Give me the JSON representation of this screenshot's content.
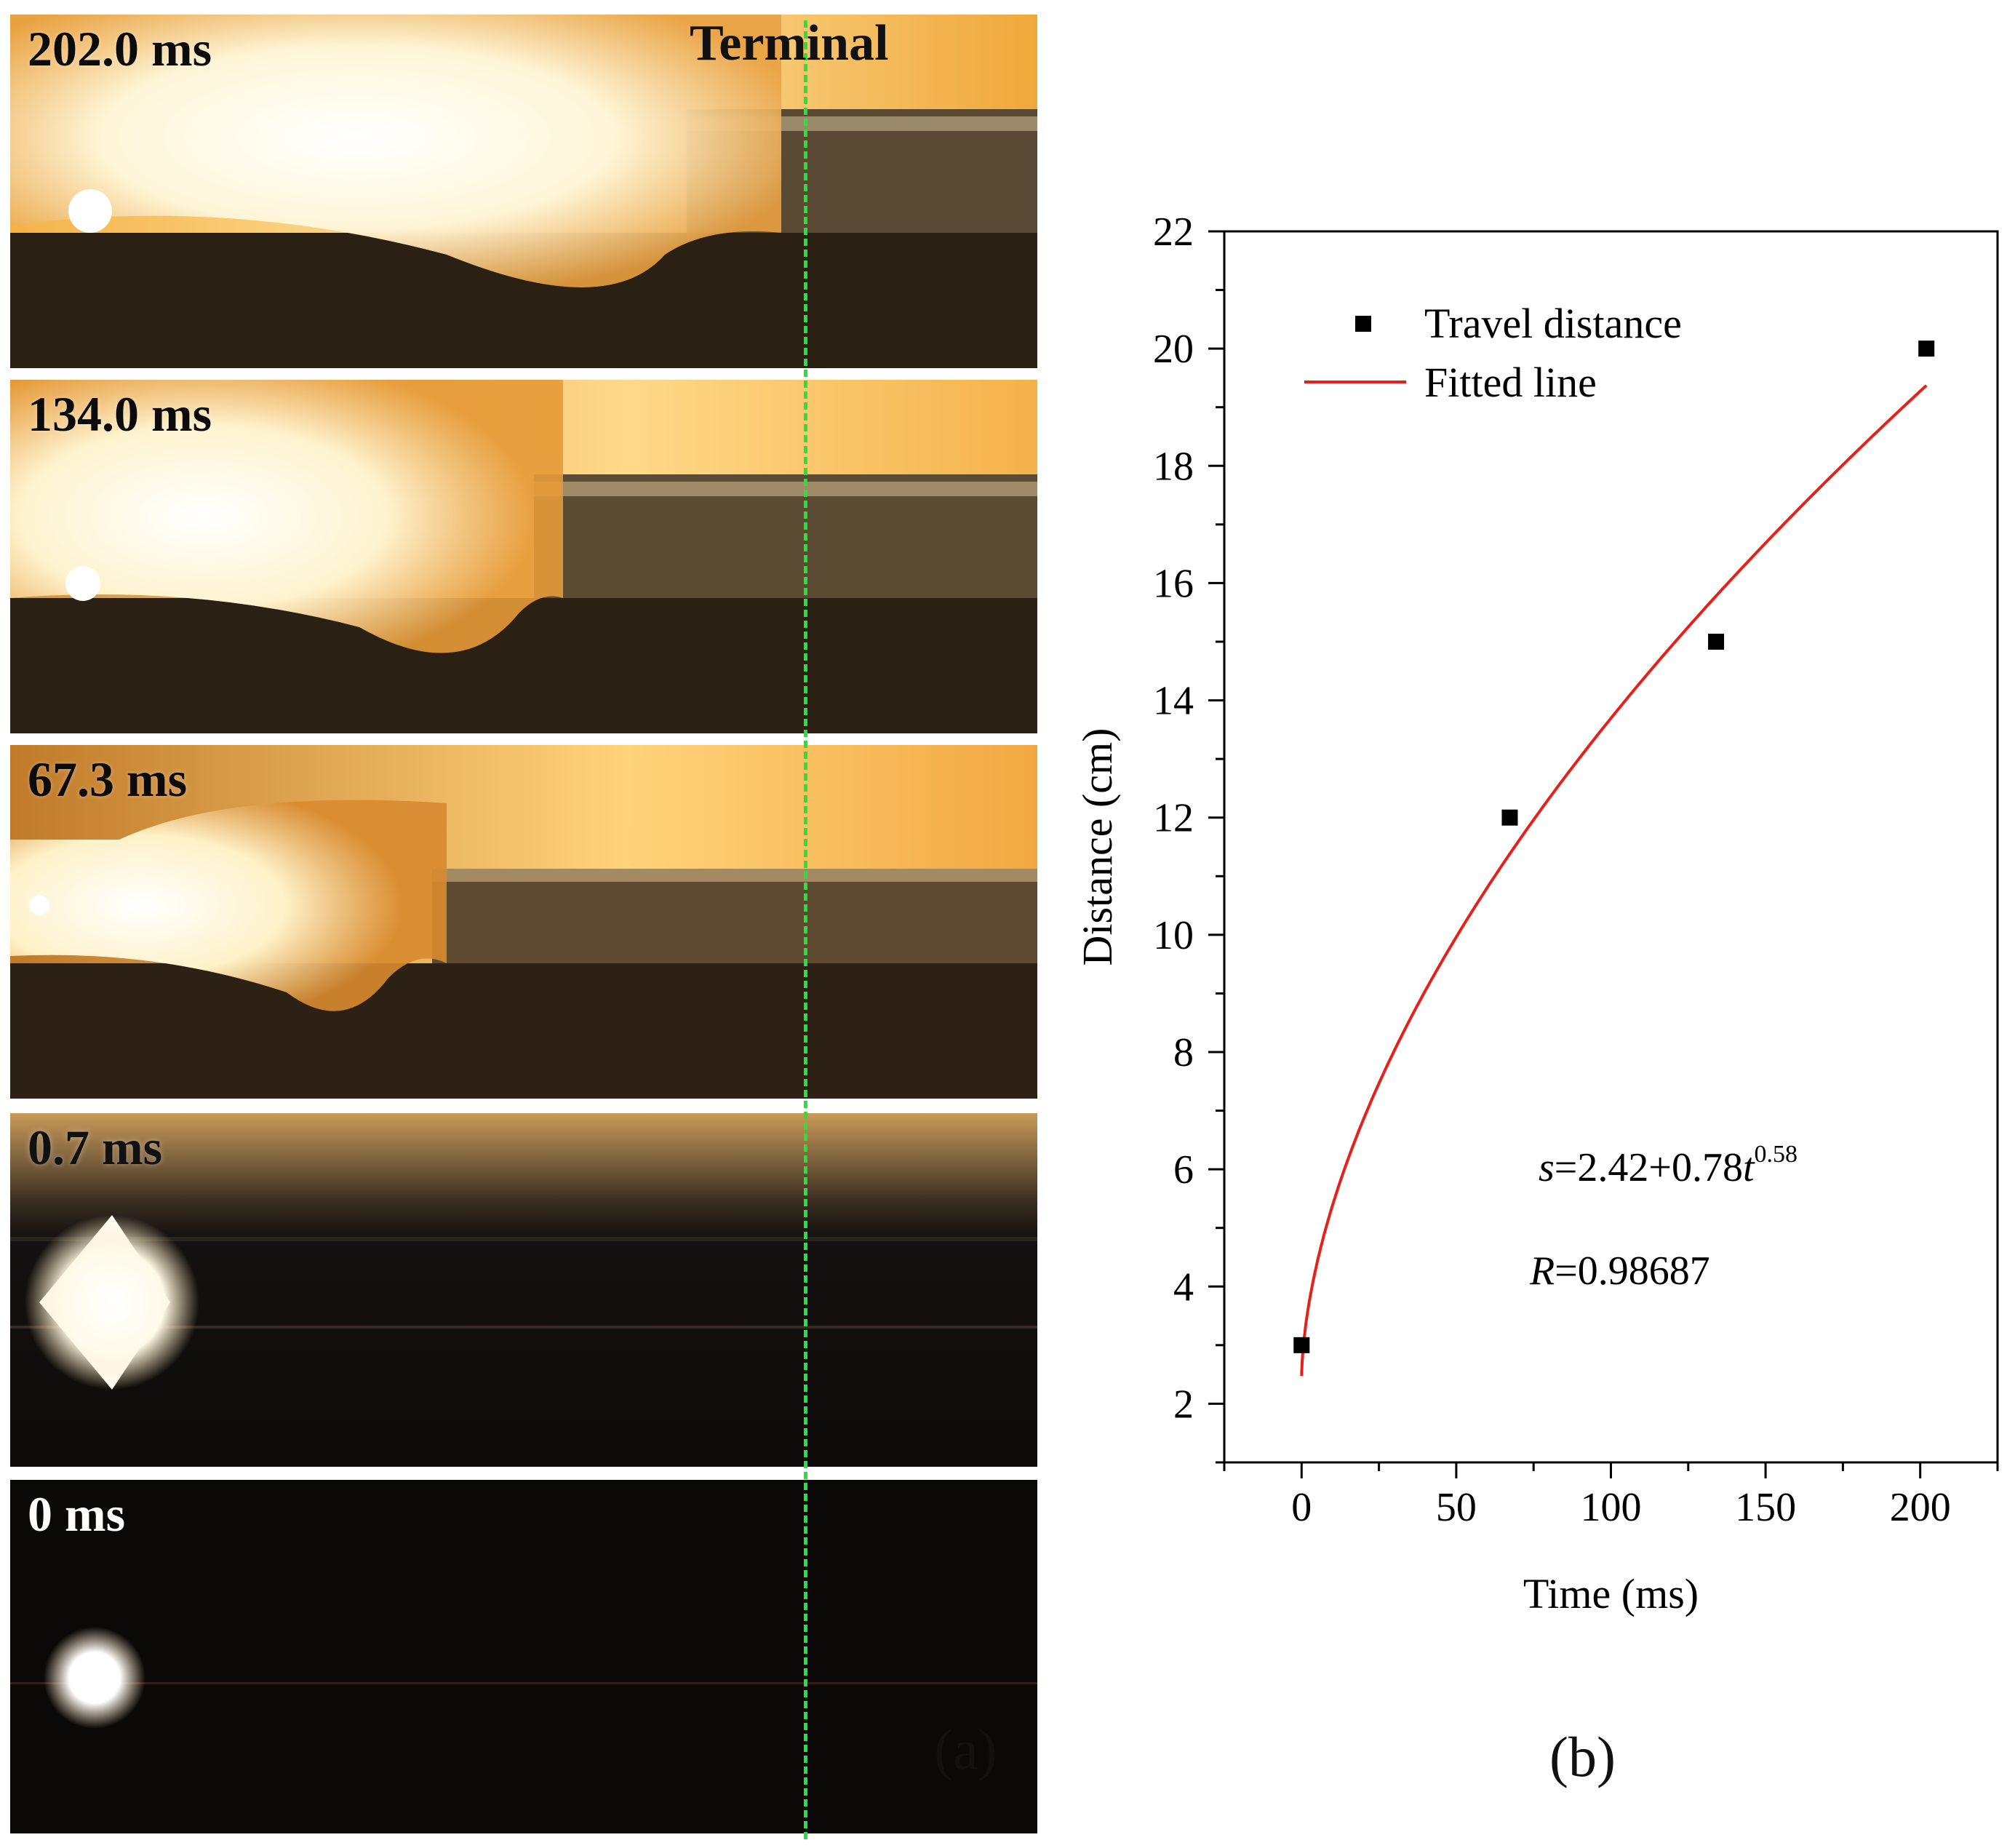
{
  "panel_a": {
    "terminal_label": "Terminal",
    "panel_label": "(a)",
    "frames": [
      {
        "time": "202.0 ms"
      },
      {
        "time": "134.0 ms"
      },
      {
        "time": "67.3 ms"
      },
      {
        "time": "0.7 ms"
      },
      {
        "time": "0 ms"
      }
    ],
    "colors": {
      "terminal_line": "#26e23a",
      "flame": "#ffd27a"
    }
  },
  "panel_b": {
    "panel_label": "(b)"
  },
  "chart_data": {
    "type": "scatter",
    "title": "",
    "xlabel": "Time (ms)",
    "ylabel": "Distance (cm)",
    "xlim": [
      -25,
      225
    ],
    "ylim": [
      1,
      22
    ],
    "xticks": [
      0,
      50,
      100,
      150,
      200
    ],
    "yticks": [
      2,
      4,
      6,
      8,
      10,
      12,
      14,
      16,
      18,
      20,
      22
    ],
    "series": [
      {
        "name": "Travel distance",
        "type": "scatter",
        "color": "#000000",
        "x": [
          0,
          67.3,
          134.0,
          202.0
        ],
        "y": [
          3,
          12,
          15,
          20
        ]
      },
      {
        "name": "Fitted line",
        "type": "line",
        "color": "#e8201c",
        "model": {
          "a": 2.42,
          "b": 0.78,
          "c": 0.58
        },
        "x_range": [
          0.01,
          202
        ]
      }
    ],
    "annotations": {
      "equation_prefix": "s",
      "equation_body": "=2.42+0.78",
      "equation_var": "t",
      "equation_exp": "0.58",
      "r_prefix": "R",
      "r_value": "=0.98687"
    },
    "legend_position": "top-left",
    "grid": false
  }
}
